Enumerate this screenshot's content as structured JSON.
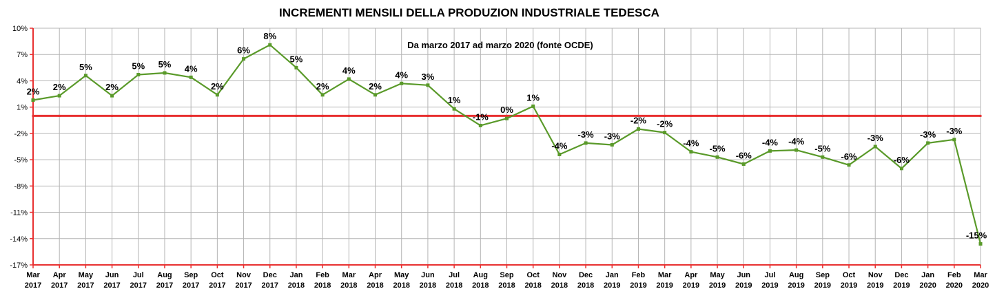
{
  "chart_data": {
    "type": "line",
    "title": "INCREMENTI MENSILI DELLA PRODUZION INDUSTRIALE TEDESCA",
    "subtitle": "Da marzo 2017 ad marzo 2020 (fonte OCDE)",
    "y_tick_labels": [
      "10%",
      "7%",
      "4%",
      "1%",
      "-2%",
      "-5%",
      "-8%",
      "-11%",
      "-14%",
      "-17%"
    ],
    "ylim": [
      -17,
      10
    ],
    "grid": true,
    "reference_line": 0,
    "colors": {
      "series": "#5a9a2a",
      "reference_line": "#e83030",
      "axis": "#e83030",
      "grid": "#b4b4b4"
    },
    "categories": [
      {
        "month": "Mar",
        "year": "2017"
      },
      {
        "month": "Apr",
        "year": "2017"
      },
      {
        "month": "May",
        "year": "2017"
      },
      {
        "month": "Jun",
        "year": "2017"
      },
      {
        "month": "Jul",
        "year": "2017"
      },
      {
        "month": "Aug",
        "year": "2017"
      },
      {
        "month": "Sep",
        "year": "2017"
      },
      {
        "month": "Oct",
        "year": "2017"
      },
      {
        "month": "Nov",
        "year": "2017"
      },
      {
        "month": "Dec",
        "year": "2017"
      },
      {
        "month": "Jan",
        "year": "2018"
      },
      {
        "month": "Feb",
        "year": "2018"
      },
      {
        "month": "Mar",
        "year": "2018"
      },
      {
        "month": "Apr",
        "year": "2018"
      },
      {
        "month": "May",
        "year": "2018"
      },
      {
        "month": "Jun",
        "year": "2018"
      },
      {
        "month": "Jul",
        "year": "2018"
      },
      {
        "month": "Aug",
        "year": "2018"
      },
      {
        "month": "Sep",
        "year": "2018"
      },
      {
        "month": "Oct",
        "year": "2018"
      },
      {
        "month": "Nov",
        "year": "2018"
      },
      {
        "month": "Dec",
        "year": "2018"
      },
      {
        "month": "Jan",
        "year": "2019"
      },
      {
        "month": "Feb",
        "year": "2019"
      },
      {
        "month": "Mar",
        "year": "2019"
      },
      {
        "month": "Apr",
        "year": "2019"
      },
      {
        "month": "May",
        "year": "2019"
      },
      {
        "month": "Jun",
        "year": "2019"
      },
      {
        "month": "Jul",
        "year": "2019"
      },
      {
        "month": "Aug",
        "year": "2019"
      },
      {
        "month": "Sep",
        "year": "2019"
      },
      {
        "month": "Oct",
        "year": "2019"
      },
      {
        "month": "Nov",
        "year": "2019"
      },
      {
        "month": "Dec",
        "year": "2019"
      },
      {
        "month": "Jan",
        "year": "2020"
      },
      {
        "month": "Feb",
        "year": "2020"
      },
      {
        "month": "Mar",
        "year": "2020"
      }
    ],
    "values": [
      1.8,
      2.3,
      4.6,
      2.3,
      4.7,
      4.9,
      4.4,
      2.4,
      6.5,
      8.1,
      5.5,
      2.4,
      4.2,
      2.4,
      3.7,
      3.5,
      0.8,
      -1.1,
      -0.3,
      1.1,
      -4.4,
      -3.1,
      -3.3,
      -1.5,
      -1.9,
      -4.1,
      -4.7,
      -5.5,
      -4.0,
      -3.9,
      -4.7,
      -5.6,
      -3.5,
      -6.0,
      -3.1,
      -2.7,
      -14.6
    ],
    "data_labels": [
      "2%",
      "2%",
      "5%",
      "2%",
      "5%",
      "5%",
      "4%",
      "2%",
      "6%",
      "8%",
      "5%",
      "2%",
      "4%",
      "2%",
      "4%",
      "3%",
      "1%",
      "-1%",
      "0%",
      "1%",
      "-4%",
      "-3%",
      "-3%",
      "-2%",
      "-2%",
      "-4%",
      "-5%",
      "-6%",
      "-4%",
      "-4%",
      "-5%",
      "-6%",
      "-3%",
      "-6%",
      "-3%",
      "-3%",
      "-15%"
    ]
  }
}
